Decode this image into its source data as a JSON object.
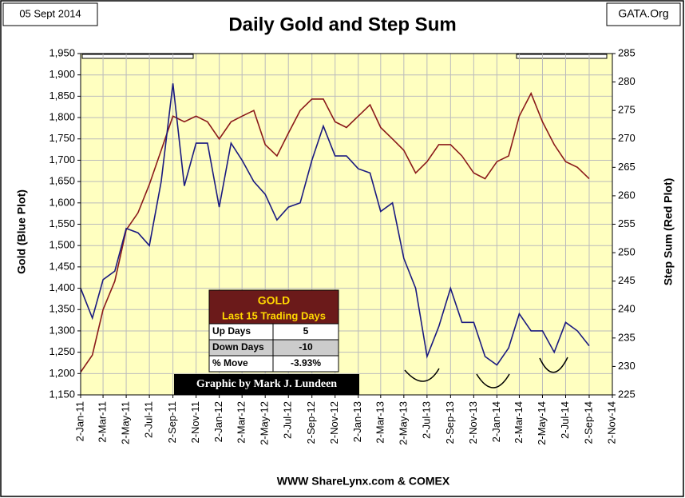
{
  "header": {
    "date": "05 Sept 2014",
    "source": "GATA.Org"
  },
  "table": {
    "title": "GOLD",
    "subtitle": "Last 15 Trading Days",
    "rows": [
      [
        "Up Days",
        "5"
      ],
      [
        "Down Days",
        "-10"
      ],
      [
        "% Move",
        "-3.93%"
      ]
    ]
  },
  "credit": "Graphic by Mark J. Lundeen",
  "chart_data": {
    "type": "line",
    "title": "Daily Gold and Step Sum",
    "ylabel": "Gold  (Blue Plot)",
    "y2label": "Step Sum   (Red Plot)",
    "xlabel": "WWW ShareLynx.com & COMEX",
    "x": [
      "2011-01-02",
      "2011-02-02",
      "2011-03-02",
      "2011-04-02",
      "2011-05-02",
      "2011-06-02",
      "2011-07-02",
      "2011-08-02",
      "2011-09-02",
      "2011-10-02",
      "2011-11-02",
      "2011-12-02",
      "2012-01-02",
      "2012-02-02",
      "2012-03-02",
      "2012-04-02",
      "2012-05-02",
      "2012-06-02",
      "2012-07-02",
      "2012-08-02",
      "2012-09-02",
      "2012-10-02",
      "2012-11-02",
      "2012-12-02",
      "2013-01-02",
      "2013-02-02",
      "2013-03-02",
      "2013-04-02",
      "2013-05-02",
      "2013-06-02",
      "2013-07-02",
      "2013-08-02",
      "2013-09-02",
      "2013-10-02",
      "2013-11-02",
      "2013-12-02",
      "2014-01-02",
      "2014-02-02",
      "2014-03-02",
      "2014-04-02",
      "2014-05-02",
      "2014-06-02",
      "2014-07-02",
      "2014-08-02",
      "2014-09-02"
    ],
    "series": [
      {
        "name": "Gold",
        "color": "#1a1a80",
        "axis": "y",
        "values": [
          1400,
          1330,
          1420,
          1440,
          1540,
          1530,
          1500,
          1650,
          1880,
          1640,
          1740,
          1740,
          1590,
          1740,
          1700,
          1650,
          1620,
          1560,
          1590,
          1600,
          1700,
          1780,
          1710,
          1710,
          1680,
          1670,
          1580,
          1600,
          1470,
          1400,
          1240,
          1310,
          1400,
          1320,
          1320,
          1240,
          1220,
          1260,
          1340,
          1300,
          1300,
          1250,
          1320,
          1300,
          1265
        ]
      },
      {
        "name": "Step Sum",
        "color": "#8b1a1a",
        "axis": "y2",
        "values": [
          229,
          232,
          240,
          245,
          254,
          257,
          262,
          268,
          274,
          273,
          274,
          273,
          270,
          273,
          274,
          275,
          269,
          267,
          271,
          275,
          277,
          277,
          273,
          272,
          274,
          276,
          272,
          270,
          268,
          264,
          266,
          269,
          269,
          267,
          264,
          263,
          266,
          267,
          274,
          278,
          273,
          269,
          266,
          265,
          263
        ]
      }
    ],
    "xlim": [
      "2011-01-02",
      "2014-11-02"
    ],
    "xticks": [
      {
        "value": "2011-01-02",
        "label": "2-Jan-11"
      },
      {
        "value": "2011-03-02",
        "label": "2-Mar-11"
      },
      {
        "value": "2011-05-02",
        "label": "2-May-11"
      },
      {
        "value": "2011-07-02",
        "label": "2-Jul-11"
      },
      {
        "value": "2011-09-02",
        "label": "2-Sep-11"
      },
      {
        "value": "2011-11-02",
        "label": "2-Nov-11"
      },
      {
        "value": "2012-01-02",
        "label": "2-Jan-12"
      },
      {
        "value": "2012-03-02",
        "label": "2-Mar-12"
      },
      {
        "value": "2012-05-02",
        "label": "2-May-12"
      },
      {
        "value": "2012-07-02",
        "label": "2-Jul-12"
      },
      {
        "value": "2012-09-02",
        "label": "2-Sep-12"
      },
      {
        "value": "2012-11-02",
        "label": "2-Nov-12"
      },
      {
        "value": "2013-01-02",
        "label": "2-Jan-13"
      },
      {
        "value": "2013-03-02",
        "label": "2-Mar-13"
      },
      {
        "value": "2013-05-02",
        "label": "2-May-13"
      },
      {
        "value": "2013-07-02",
        "label": "2-Jul-13"
      },
      {
        "value": "2013-09-02",
        "label": "2-Sep-13"
      },
      {
        "value": "2013-11-02",
        "label": "2-Nov-13"
      },
      {
        "value": "2014-01-02",
        "label": "2-Jan-14"
      },
      {
        "value": "2014-03-02",
        "label": "2-Mar-14"
      },
      {
        "value": "2014-05-02",
        "label": "2-May-14"
      },
      {
        "value": "2014-07-02",
        "label": "2-Jul-14"
      },
      {
        "value": "2014-09-02",
        "label": "2-Sep-14"
      },
      {
        "value": "2014-11-02",
        "label": "2-Nov-14"
      }
    ],
    "ylim": [
      1150,
      1950
    ],
    "yticks": [
      {
        "value": 1150,
        "label": "1,150"
      },
      {
        "value": 1200,
        "label": "1,200"
      },
      {
        "value": 1250,
        "label": "1,250"
      },
      {
        "value": 1300,
        "label": "1,300"
      },
      {
        "value": 1350,
        "label": "1,350"
      },
      {
        "value": 1400,
        "label": "1,400"
      },
      {
        "value": 1450,
        "label": "1,450"
      },
      {
        "value": 1500,
        "label": "1,500"
      },
      {
        "value": 1550,
        "label": "1,550"
      },
      {
        "value": 1600,
        "label": "1,600"
      },
      {
        "value": 1650,
        "label": "1,650"
      },
      {
        "value": 1700,
        "label": "1,700"
      },
      {
        "value": 1750,
        "label": "1,750"
      },
      {
        "value": 1800,
        "label": "1,800"
      },
      {
        "value": 1850,
        "label": "1,850"
      },
      {
        "value": 1900,
        "label": "1,900"
      },
      {
        "value": 1950,
        "label": "1,950"
      }
    ],
    "y2lim": [
      225,
      285
    ],
    "y2ticks": [
      225,
      230,
      235,
      240,
      245,
      250,
      255,
      260,
      265,
      270,
      275,
      280,
      285
    ],
    "grid": true
  }
}
